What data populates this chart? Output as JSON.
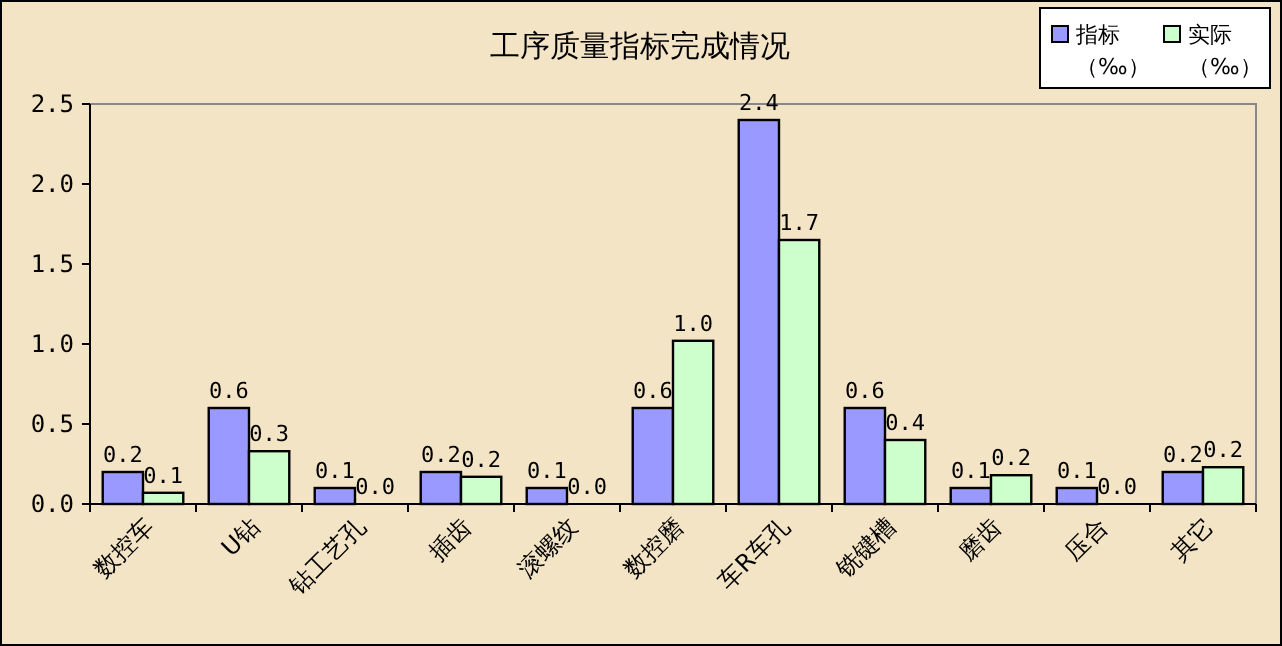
{
  "chart_data": {
    "type": "bar",
    "title": "工序质量指标完成情况",
    "categories": [
      "数控车",
      "U钻",
      "钻工艺孔",
      "插齿",
      "滚螺纹",
      "数控磨",
      "车R车孔",
      "铣键槽",
      "磨齿",
      "压合",
      "其它"
    ],
    "series": [
      {
        "name": "指标（‰）",
        "color": "#9999ff",
        "values": [
          0.2,
          0.6,
          0.1,
          0.2,
          0.1,
          0.6,
          2.4,
          0.6,
          0.1,
          0.1,
          0.2
        ],
        "value_labels": [
          "0.2",
          "0.6",
          "0.1",
          "0.2",
          "0.1",
          "0.6",
          "2.4",
          "0.6",
          "0.1",
          "0.1",
          "0.2"
        ]
      },
      {
        "name": "实际（‰）",
        "color": "#ccffcc",
        "values": [
          0.07,
          0.33,
          0,
          0.17,
          0,
          1.02,
          1.65,
          0.4,
          0.18,
          0,
          0.23
        ],
        "value_labels": [
          "0.1",
          "0.3",
          "0.0",
          "0.2",
          "0.0",
          "1.0",
          "1.7",
          "0.4",
          "0.2",
          "0.0",
          "0.2"
        ]
      }
    ],
    "ylim": [
      0,
      2.5
    ],
    "yticks": [
      {
        "value": 0,
        "label": "0.0"
      },
      {
        "value": 0.5,
        "label": "0.5"
      },
      {
        "value": 1,
        "label": "1.0"
      },
      {
        "value": 1.5,
        "label": "1.5"
      },
      {
        "value": 2,
        "label": "2.0"
      },
      {
        "value": 2.5,
        "label": "2.5"
      }
    ],
    "grid": false,
    "legend": "top right"
  }
}
